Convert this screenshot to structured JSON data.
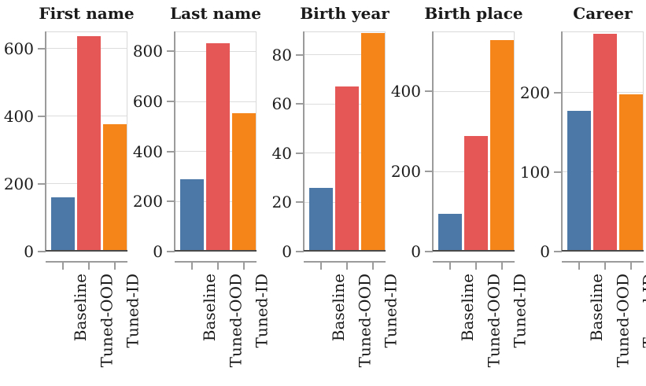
{
  "figure_title": "",
  "colors": {
    "background": "#ffffff",
    "text": "#1a1a1a",
    "axis": "#9b9b9b",
    "zero": "#4a4a4a",
    "grid": "#dcdcdc",
    "frame": "#d9d9d9"
  },
  "chart_data": {
    "type": "bar",
    "layout": "five side-by-side bar panels (small multiples), shared categories, rotated x tick labels, no legend",
    "grid": true,
    "legend_position": "none",
    "categories": [
      "Baseline",
      "Tuned-OOD",
      "Tuned-ID"
    ],
    "series_colors": [
      "#4c78a8",
      "#e45756",
      "#f58518"
    ],
    "panels": [
      {
        "title": "First name",
        "values": [
          160,
          637,
          375
        ],
        "ylim": [
          0,
          650
        ],
        "yticks": [
          0,
          200,
          400,
          600
        ]
      },
      {
        "title": "Last name",
        "values": [
          289,
          833,
          554
        ],
        "ylim": [
          0,
          880
        ],
        "yticks": [
          0,
          200,
          400,
          600,
          800
        ]
      },
      {
        "title": "Birth year",
        "values": [
          26,
          67,
          89
        ],
        "ylim": [
          0,
          89.5
        ],
        "yticks": [
          0,
          20,
          40,
          60,
          80
        ]
      },
      {
        "title": "Birth place",
        "values": [
          95,
          288,
          529
        ],
        "ylim": [
          0,
          550
        ],
        "yticks": [
          0,
          200,
          400
        ]
      },
      {
        "title": "Career",
        "values": [
          177,
          274,
          198
        ],
        "ylim": [
          0,
          277
        ],
        "yticks": [
          0,
          100,
          200
        ]
      }
    ]
  }
}
